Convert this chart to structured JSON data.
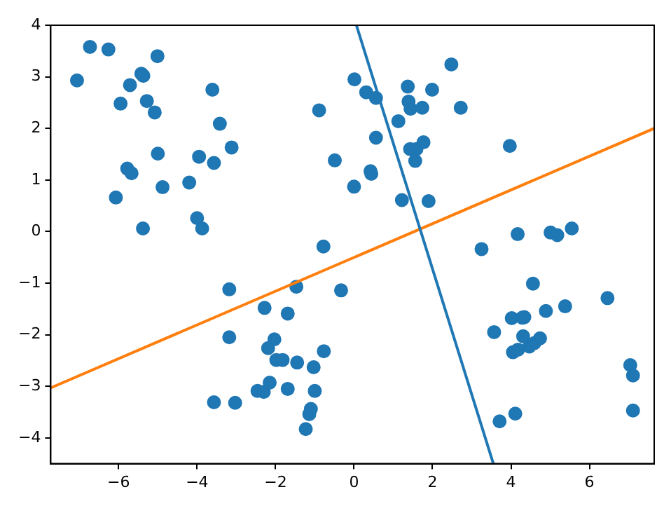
{
  "chart_data": {
    "type": "scatter",
    "xlim": [
      -7.73,
      7.65
    ],
    "ylim": [
      -4.5,
      4
    ],
    "xticks": [
      -6,
      -4,
      -2,
      0,
      2,
      4,
      6
    ],
    "yticks": [
      -4,
      -3,
      -2,
      -1,
      0,
      1,
      2,
      3,
      4
    ],
    "legend": false,
    "grid": false,
    "series": [
      {
        "type": "scatter",
        "marker": "circle",
        "color": "#1f77b4",
        "x": [
          -7.06,
          -6.73,
          -6.26,
          -5.01,
          -5.71,
          -5.42,
          -5.37,
          -5.95,
          -5.28,
          -5.08,
          -5.78,
          -5.67,
          -5.0,
          -4.88,
          -6.07,
          -5.38,
          -3.61,
          -3.42,
          -3.12,
          -3.95,
          -3.57,
          -4.2,
          -4.0,
          -3.87,
          -0.89,
          -0.49,
          -0.78,
          0.01,
          0.31,
          0.56,
          1.37,
          1.99,
          2.48,
          1.39,
          1.44,
          1.74,
          2.72,
          1.13,
          0.56,
          1.43,
          1.59,
          1.77,
          1.56,
          0.42,
          0.44,
          0.0,
          1.22,
          1.9,
          3.97,
          3.25,
          4.17,
          5.01,
          5.18,
          5.55,
          -3.18,
          -1.47,
          -0.33,
          -2.28,
          -1.69,
          -3.18,
          -2.03,
          -2.19,
          -0.77,
          -1.98,
          -1.82,
          -1.45,
          -1.03,
          -2.15,
          -2.46,
          -2.3,
          -1.69,
          -1.0,
          -3.57,
          -3.03,
          -1.1,
          -1.14,
          -1.23,
          4.56,
          6.46,
          5.38,
          4.89,
          4.02,
          4.29,
          4.34,
          3.57,
          4.31,
          4.47,
          4.6,
          4.74,
          4.05,
          4.18,
          7.04,
          7.11,
          7.11,
          3.71,
          4.11
        ],
        "values": [
          2.93,
          3.58,
          3.53,
          3.4,
          2.84,
          3.06,
          3.02,
          2.48,
          2.53,
          2.31,
          1.22,
          1.13,
          1.51,
          0.86,
          0.66,
          0.06,
          2.75,
          2.09,
          1.63,
          1.45,
          1.33,
          0.95,
          0.26,
          0.06,
          2.35,
          1.38,
          -0.29,
          2.95,
          2.7,
          2.59,
          2.81,
          2.75,
          3.24,
          2.52,
          2.38,
          2.4,
          2.4,
          2.14,
          1.82,
          1.6,
          1.6,
          1.73,
          1.37,
          1.17,
          1.12,
          0.87,
          0.61,
          0.59,
          1.66,
          -0.34,
          -0.05,
          -0.02,
          -0.07,
          0.06,
          -1.12,
          -1.07,
          -1.14,
          -1.48,
          -1.59,
          -2.05,
          -2.09,
          -2.26,
          -2.32,
          -2.49,
          -2.49,
          -2.54,
          -2.63,
          -2.93,
          -3.09,
          -3.11,
          -3.05,
          -3.09,
          -3.31,
          -3.32,
          -3.44,
          -3.54,
          -3.83,
          -1.01,
          -1.29,
          -1.45,
          -1.54,
          -1.68,
          -1.67,
          -1.66,
          -1.95,
          -2.03,
          -2.23,
          -2.16,
          -2.07,
          -2.34,
          -2.29,
          -2.59,
          -2.79,
          -3.47,
          -3.68,
          -3.53
        ]
      },
      {
        "type": "line",
        "marker": "none",
        "color": "#1f77b4",
        "x": [
          0.06,
          3.55
        ],
        "values": [
          4,
          -4.5
        ]
      },
      {
        "type": "line",
        "marker": "none",
        "color": "#ff7f0e",
        "x": [
          -7.73,
          7.65
        ],
        "values": [
          -3.03,
          2.0
        ]
      }
    ]
  }
}
